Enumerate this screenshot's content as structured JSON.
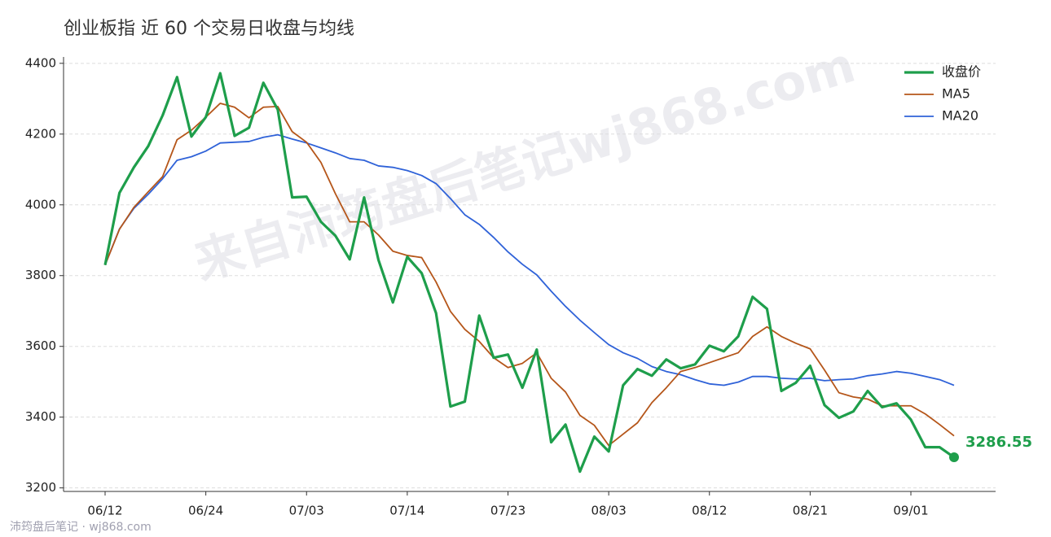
{
  "chart_data": {
    "type": "line",
    "title": "创业板指 近 60 个交易日收盘与均线",
    "watermark": "来自沛筠盘后笔记wj868.com",
    "source": "沛筠盘后笔记 · wj868.com",
    "categories": [
      "06/12",
      null,
      null,
      null,
      null,
      null,
      null,
      "06/24",
      null,
      null,
      null,
      null,
      null,
      null,
      "07/03",
      null,
      null,
      null,
      null,
      null,
      null,
      "07/14",
      null,
      null,
      null,
      null,
      null,
      null,
      "07/23",
      null,
      null,
      null,
      null,
      null,
      null,
      "08/03",
      null,
      null,
      null,
      null,
      null,
      null,
      "08/12",
      null,
      null,
      null,
      null,
      null,
      null,
      "08/21",
      null,
      null,
      null,
      null,
      null,
      null,
      "09/01",
      null,
      null,
      null
    ],
    "series": [
      {
        "name": "收盘价",
        "color": "#1e9e4b",
        "values": [
          3830,
          4034,
          4106,
          4166,
          4253,
          4361,
          4193,
          4248,
          4372,
          4195,
          4218,
          4345,
          4269,
          4021,
          4023,
          3952,
          3913,
          3846,
          4021,
          3844,
          3724,
          3853,
          3807,
          3694,
          3430,
          3444,
          3687,
          3568,
          3577,
          3483,
          3591,
          3329,
          3379,
          3246,
          3345,
          3303,
          3490,
          3536,
          3517,
          3563,
          3538,
          3549,
          3602,
          3586,
          3628,
          3740,
          3706,
          3474,
          3497,
          3545,
          3434,
          3398,
          3416,
          3474,
          3428,
          3439,
          3393,
          3315,
          3315,
          3286.55
        ]
      },
      {
        "name": "MA5",
        "color": "#b5561a",
        "values": [
          3830,
          3931,
          3993,
          4037,
          4080,
          4184,
          4211,
          4248,
          4287,
          4276,
          4246,
          4276,
          4278,
          4207,
          4177,
          4120,
          4032,
          3952,
          3952,
          3915,
          3869,
          3857,
          3851,
          3782,
          3699,
          3648,
          3614,
          3568,
          3540,
          3552,
          3582,
          3510,
          3471,
          3405,
          3377,
          3320,
          3352,
          3384,
          3441,
          3483,
          3529,
          3540,
          3554,
          3568,
          3582,
          3628,
          3655,
          3628,
          3609,
          3593,
          3533,
          3469,
          3457,
          3451,
          3432,
          3432,
          3432,
          3409,
          3379,
          3347
        ]
      },
      {
        "name": "MA20",
        "color": "#2f62d8",
        "values": [
          3830,
          3932,
          3990,
          4030,
          4074,
          4126,
          4136,
          4152,
          4175,
          4177,
          4179,
          4191,
          4198,
          4186,
          4175,
          4161,
          4147,
          4131,
          4126,
          4110,
          4106,
          4097,
          4083,
          4060,
          4018,
          3972,
          3945,
          3908,
          3867,
          3832,
          3802,
          3756,
          3713,
          3674,
          3639,
          3605,
          3582,
          3566,
          3543,
          3529,
          3520,
          3506,
          3494,
          3490,
          3499,
          3515,
          3515,
          3510,
          3508,
          3510,
          3503,
          3506,
          3508,
          3517,
          3522,
          3529,
          3524,
          3515,
          3506,
          3490
        ]
      }
    ],
    "ylim": [
      3190,
      4418
    ],
    "yticks": [
      3200,
      3400,
      3600,
      3800,
      4000,
      4200,
      4400
    ],
    "grid": true,
    "legend": "upper right"
  }
}
